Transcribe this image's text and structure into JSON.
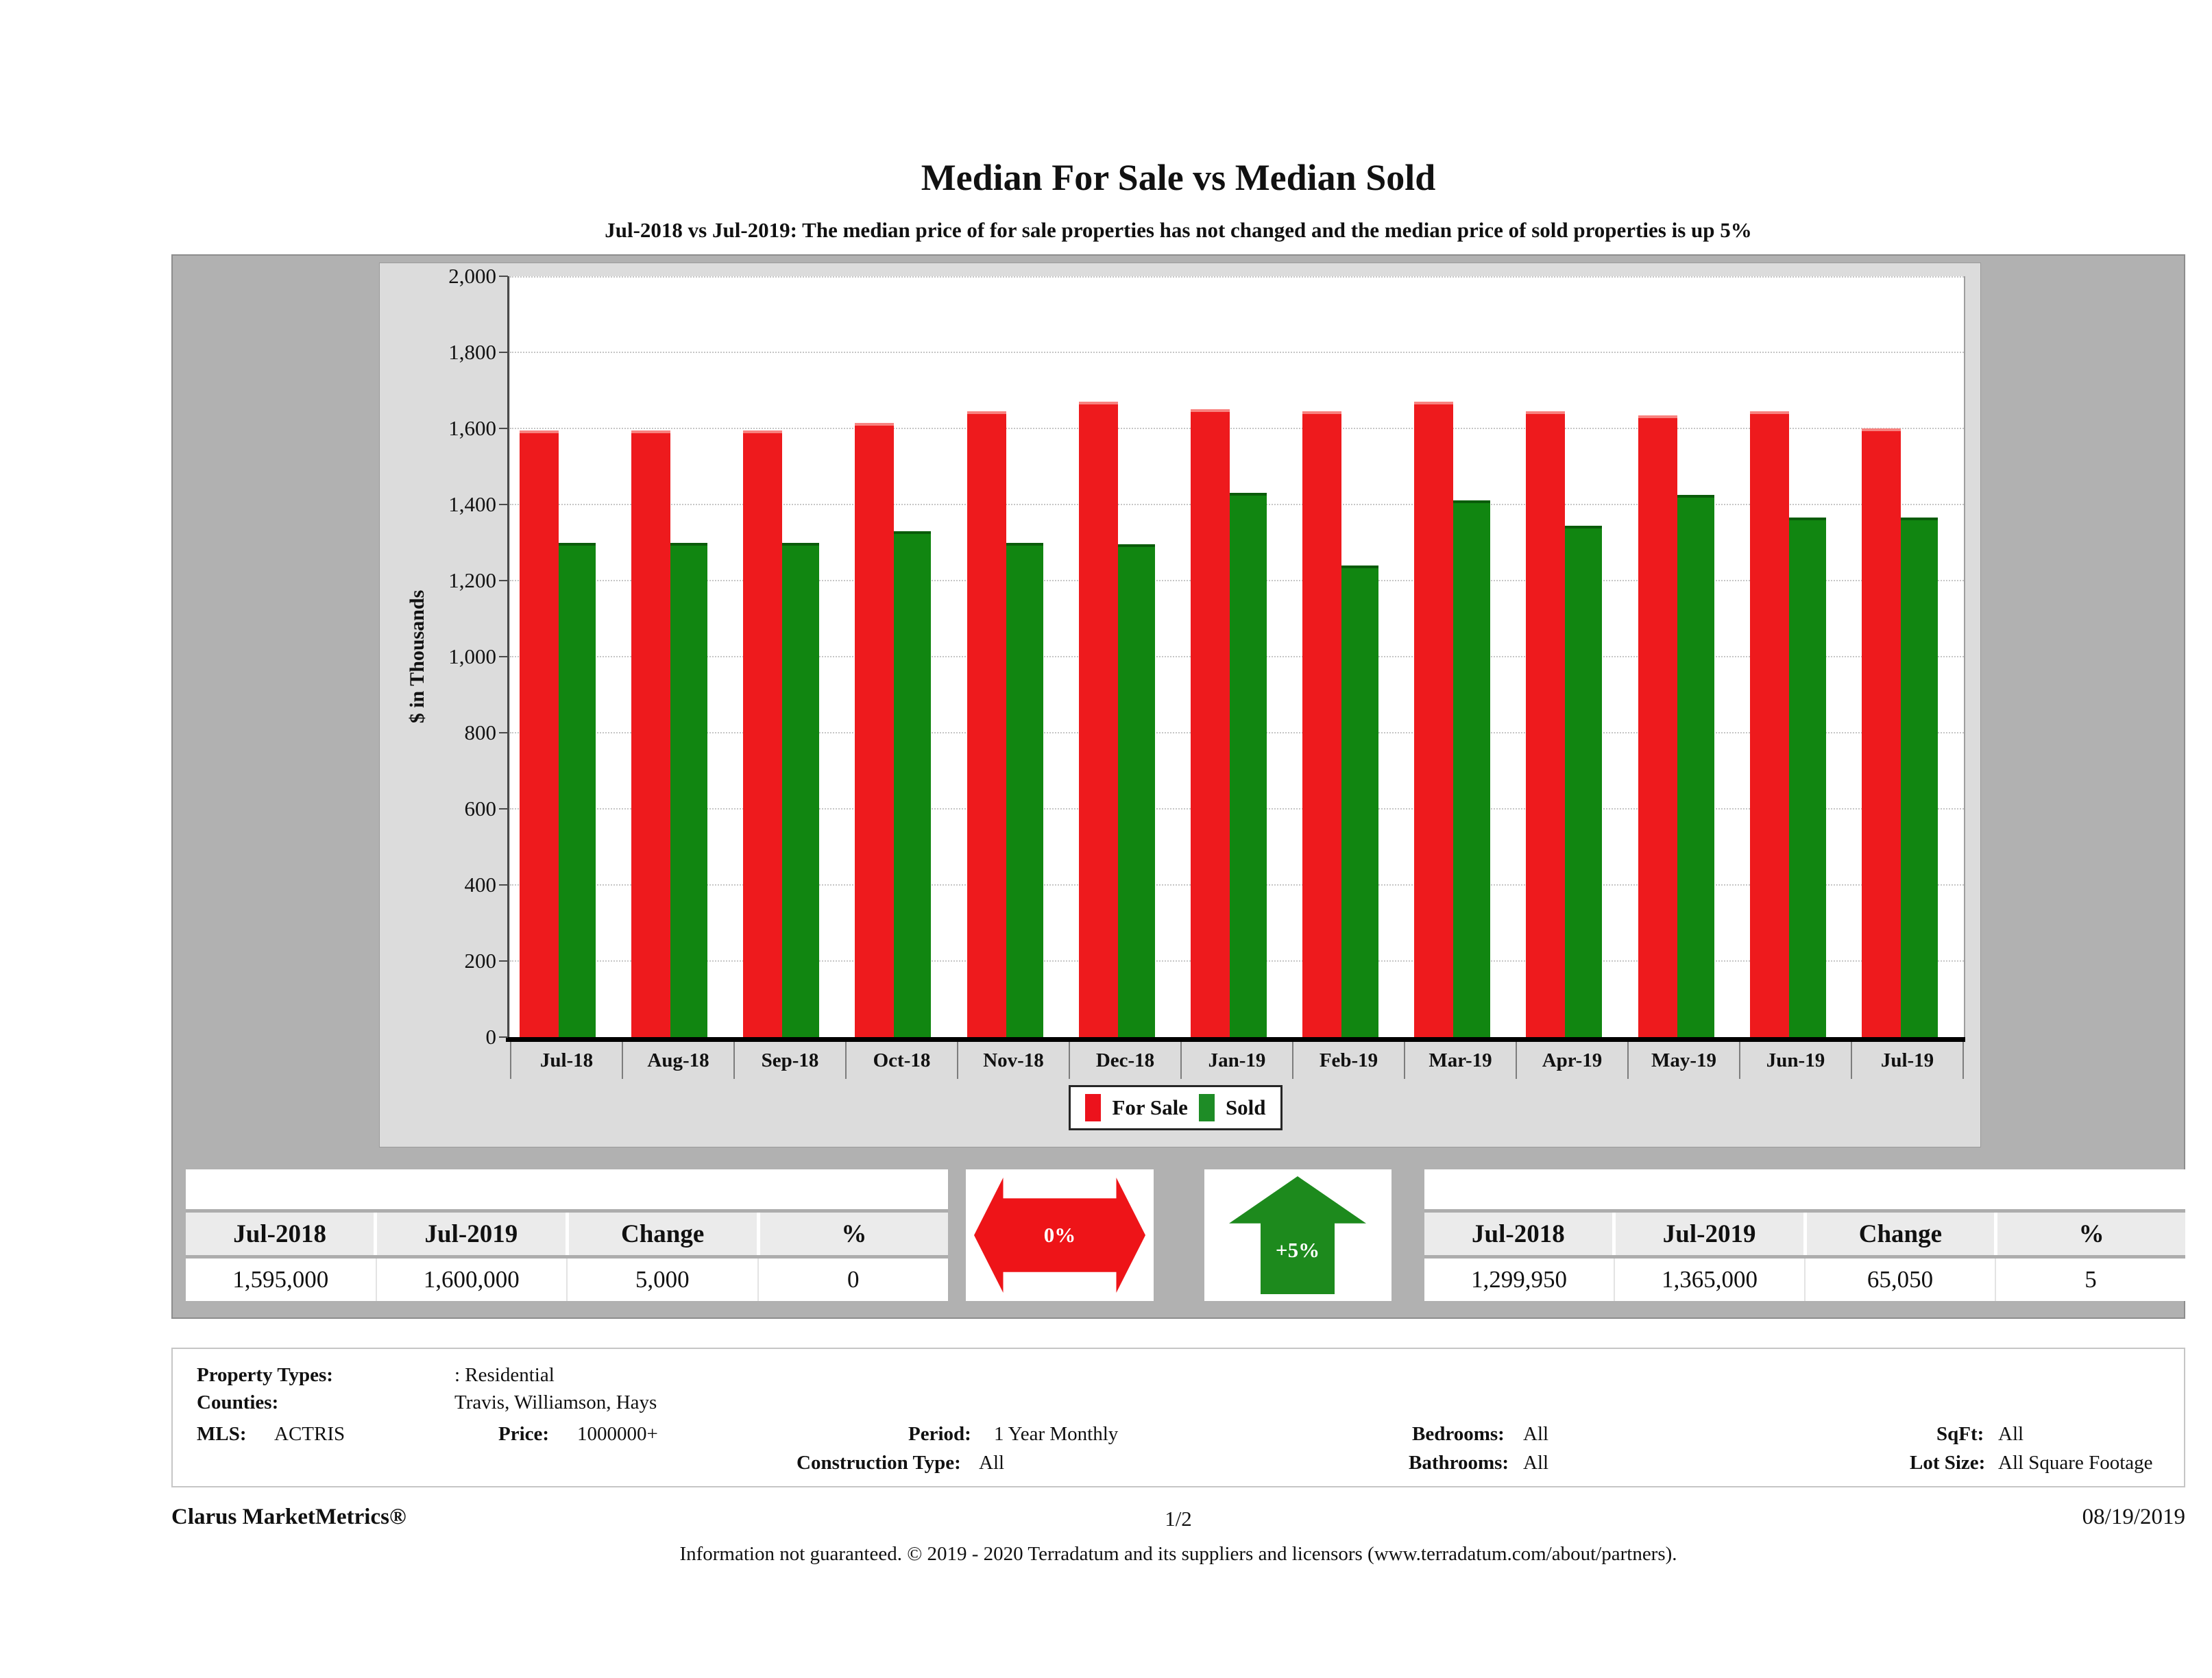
{
  "title": "Median For Sale vs Median Sold",
  "subtitle": "Jul-2018 vs Jul-2019: The median price of for sale properties has not changed and the median price of sold properties is up 5%",
  "chart_data": {
    "type": "bar",
    "categories": [
      "Jul-18",
      "Aug-18",
      "Sep-18",
      "Oct-18",
      "Nov-18",
      "Dec-18",
      "Jan-19",
      "Feb-19",
      "Mar-19",
      "Apr-19",
      "May-19",
      "Jun-19",
      "Jul-19"
    ],
    "series": [
      {
        "name": "For Sale",
        "color": "#ee1a1d",
        "values": [
          1595,
          1595,
          1595,
          1615,
          1645,
          1670,
          1650,
          1645,
          1670,
          1645,
          1635,
          1645,
          1600
        ]
      },
      {
        "name": "Sold",
        "color": "#118611",
        "values": [
          1300,
          1300,
          1300,
          1330,
          1300,
          1295,
          1430,
          1240,
          1410,
          1345,
          1425,
          1365,
          1365
        ]
      }
    ],
    "title": "Median For Sale vs Median Sold",
    "xlabel": "",
    "ylabel": "$ in Thousands",
    "ylim": [
      0,
      2000
    ],
    "ytick_step": 200,
    "y_ticks": [
      "0",
      "200",
      "400",
      "600",
      "800",
      "1,000",
      "1,200",
      "1,400",
      "1,600",
      "1,800",
      "2,000"
    ],
    "grid": true,
    "legend_position": "bottom-center",
    "legend": [
      {
        "label": "For Sale",
        "color": "#ec121c"
      },
      {
        "label": "Sold",
        "color": "#1e8c26"
      }
    ]
  },
  "summary_left": {
    "headers": [
      "Jul-2018",
      "Jul-2019",
      "Change",
      "%"
    ],
    "row": [
      "1,595,000",
      "1,600,000",
      "5,000",
      "0"
    ]
  },
  "summary_right": {
    "headers": [
      "Jul-2018",
      "Jul-2019",
      "Change",
      "%"
    ],
    "row": [
      "1,299,950",
      "1,365,000",
      "65,050",
      "5"
    ]
  },
  "indicators": {
    "for_sale_change": "0%",
    "for_sale_color": "#ee1418",
    "sold_change": "+5%",
    "sold_color": "#1d8a1d"
  },
  "criteria": {
    "property_types_label": "Property Types:",
    "property_types": ": Residential",
    "counties_label": "Counties:",
    "counties": "Travis, Williamson, Hays",
    "mls_label": "MLS:",
    "mls": "ACTRIS",
    "price_label": "Price:",
    "price": "1000000+",
    "period_label": "Period:",
    "period": "1 Year Monthly",
    "construction_label": "Construction Type:",
    "construction": "All",
    "bedrooms_label": "Bedrooms:",
    "bedrooms": "All",
    "bathrooms_label": "Bathrooms:",
    "bathrooms": "All",
    "sqft_label": "SqFt:",
    "sqft": "All",
    "lot_size_label": "Lot Size:",
    "lot_size": "All Square Footage"
  },
  "footer": {
    "brand": "Clarus MarketMetrics®",
    "page": "1/2",
    "date": "08/19/2019",
    "disclaimer": "Information not guaranteed. © 2019 - 2020 Terradatum and its suppliers and licensors (www.terradatum.com/about/partners)."
  }
}
